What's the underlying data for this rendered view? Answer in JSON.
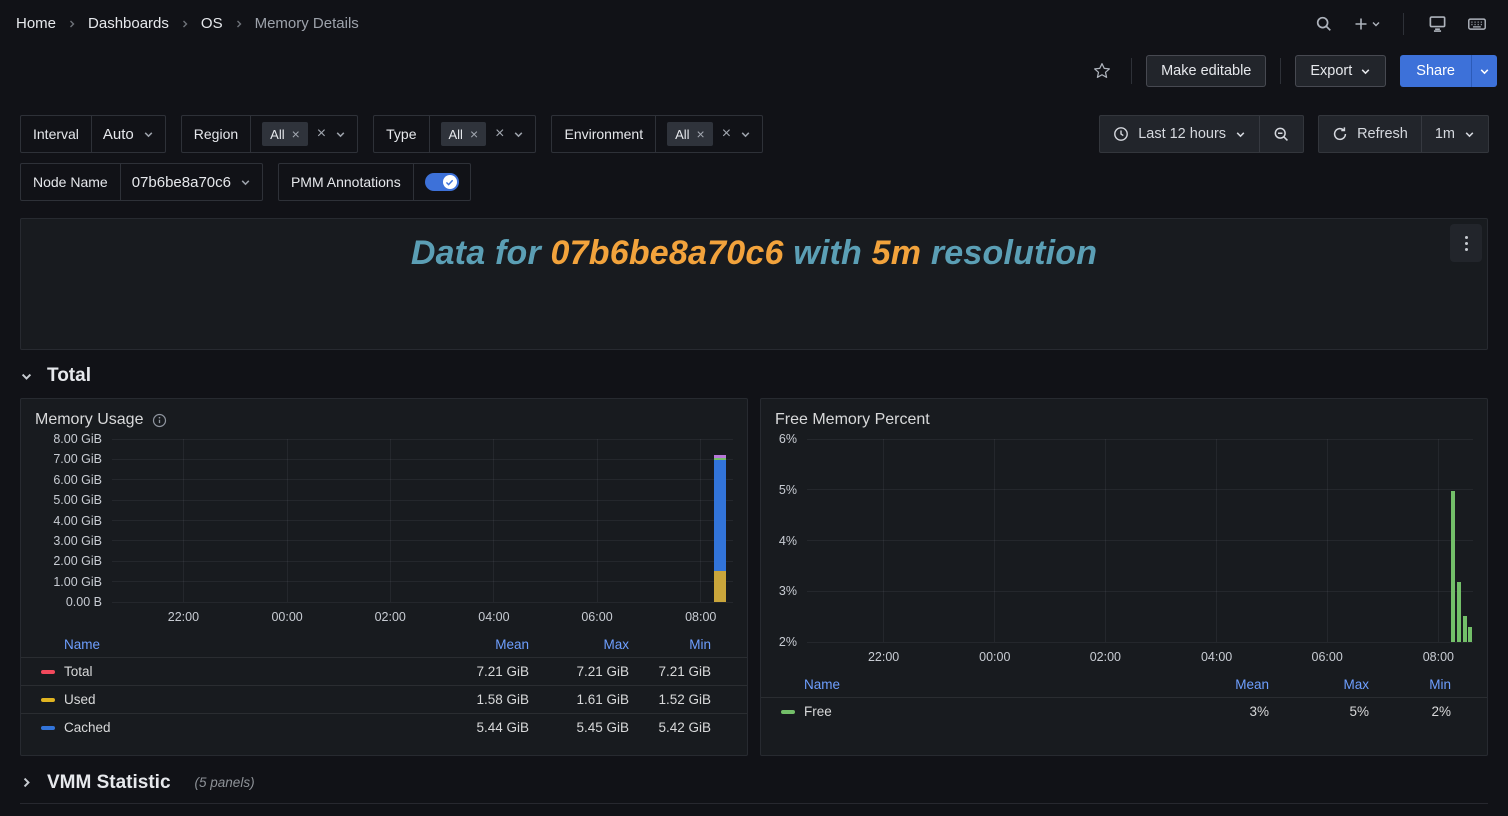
{
  "breadcrumb": {
    "items": [
      "Home",
      "Dashboards",
      "OS",
      "Memory Details"
    ]
  },
  "toolbar": {
    "make_editable": "Make editable",
    "export": "Export",
    "share": "Share"
  },
  "filters": {
    "interval": {
      "label": "Interval",
      "value": "Auto"
    },
    "region": {
      "label": "Region",
      "chip": "All"
    },
    "type": {
      "label": "Type",
      "chip": "All"
    },
    "environment": {
      "label": "Environment",
      "chip": "All"
    },
    "time_range": {
      "label": "Last 12 hours"
    },
    "refresh": {
      "label": "Refresh",
      "interval": "1m"
    },
    "node_name": {
      "label": "Node Name",
      "value": "07b6be8a70c6"
    },
    "pmm_annotations": {
      "label": "PMM Annotations",
      "enabled": true
    }
  },
  "banner": {
    "segments": [
      {
        "text": "Data for ",
        "color": "#5B9FB5"
      },
      {
        "text": "07b6be8a70c6",
        "color": "#F2A33C"
      },
      {
        "text": " with ",
        "color": "#5B9FB5"
      },
      {
        "text": "5m",
        "color": "#F2A33C"
      },
      {
        "text": " resolution",
        "color": "#5B9FB5"
      }
    ]
  },
  "sections": {
    "total": {
      "title": "Total"
    },
    "vmm": {
      "title": "VMM Statistic",
      "panel_count": "(5 panels)"
    }
  },
  "memory_panel": {
    "title": "Memory Usage",
    "legend_headers": [
      "Name",
      "Mean",
      "Max",
      "Min"
    ],
    "series": [
      {
        "name": "Total",
        "color": "#F2495C",
        "mean": "7.21 GiB",
        "max": "7.21 GiB",
        "min": "7.21 GiB"
      },
      {
        "name": "Used",
        "color": "#E0B421",
        "mean": "1.58 GiB",
        "max": "1.61 GiB",
        "min": "1.52 GiB"
      },
      {
        "name": "Cached",
        "color": "#3274D9",
        "mean": "5.44 GiB",
        "max": "5.45 GiB",
        "min": "5.42 GiB"
      }
    ]
  },
  "free_panel": {
    "title": "Free Memory Percent",
    "legend_headers": [
      "Name",
      "Mean",
      "Max",
      "Min"
    ],
    "series": [
      {
        "name": "Free",
        "color": "#73BF69",
        "mean": "3%",
        "max": "5%",
        "min": "2%"
      }
    ]
  },
  "chart_data": [
    {
      "type": "bar",
      "title": "Memory Usage",
      "unit": "GiB",
      "ylim": [
        0,
        8
      ],
      "yticks": [
        {
          "label": "8.00 GiB",
          "value": 8
        },
        {
          "label": "7.00 GiB",
          "value": 7
        },
        {
          "label": "6.00 GiB",
          "value": 6
        },
        {
          "label": "5.00 GiB",
          "value": 5
        },
        {
          "label": "4.00 GiB",
          "value": 4
        },
        {
          "label": "3.00 GiB",
          "value": 3
        },
        {
          "label": "2.00 GiB",
          "value": 2
        },
        {
          "label": "1.00 GiB",
          "value": 1
        },
        {
          "label": "0.00 B",
          "value": 0
        }
      ],
      "xticks": [
        {
          "label": "22:00",
          "f": 0.115
        },
        {
          "label": "00:00",
          "f": 0.282
        },
        {
          "label": "02:00",
          "f": 0.448
        },
        {
          "label": "04:00",
          "f": 0.615
        },
        {
          "label": "06:00",
          "f": 0.781
        },
        {
          "label": "08:00",
          "f": 0.948
        }
      ],
      "bars": [
        {
          "f": 0.97,
          "w": 12,
          "segments": [
            {
              "name": "Used",
              "from": 0,
              "to": 1.5,
              "color": "#C9A53B"
            },
            {
              "name": "Cached",
              "from": 1.5,
              "to": 6.98,
              "color": "#3274D9"
            },
            {
              "name": "Free",
              "from": 6.98,
              "to": 7.06,
              "color": "#73BF69"
            },
            {
              "name": "Total",
              "from": 7.06,
              "to": 7.21,
              "color": "#B877D9"
            }
          ]
        }
      ]
    },
    {
      "type": "bar",
      "title": "Free Memory Percent",
      "unit": "%",
      "ylim": [
        2,
        6
      ],
      "yticks": [
        {
          "label": "6%",
          "value": 6
        },
        {
          "label": "5%",
          "value": 5
        },
        {
          "label": "4%",
          "value": 4
        },
        {
          "label": "3%",
          "value": 3
        },
        {
          "label": "2%",
          "value": 2
        }
      ],
      "xticks": [
        {
          "label": "22:00",
          "f": 0.115
        },
        {
          "label": "00:00",
          "f": 0.282
        },
        {
          "label": "02:00",
          "f": 0.448
        },
        {
          "label": "04:00",
          "f": 0.615
        },
        {
          "label": "06:00",
          "f": 0.781
        },
        {
          "label": "08:00",
          "f": 0.948
        }
      ],
      "bars": [
        {
          "f": 0.967,
          "w": 4,
          "segments": [
            {
              "name": "Free",
              "from": 2,
              "to": 4.97,
              "color": "#73BF69"
            }
          ]
        },
        {
          "f": 0.976,
          "w": 4,
          "segments": [
            {
              "name": "Free",
              "from": 2,
              "to": 3.18,
              "color": "#73BF69"
            }
          ]
        },
        {
          "f": 0.985,
          "w": 4,
          "segments": [
            {
              "name": "Free",
              "from": 2,
              "to": 2.52,
              "color": "#73BF69"
            }
          ]
        },
        {
          "f": 0.992,
          "w": 4,
          "segments": [
            {
              "name": "Free",
              "from": 2,
              "to": 2.3,
              "color": "#73BF69"
            }
          ]
        }
      ]
    }
  ]
}
